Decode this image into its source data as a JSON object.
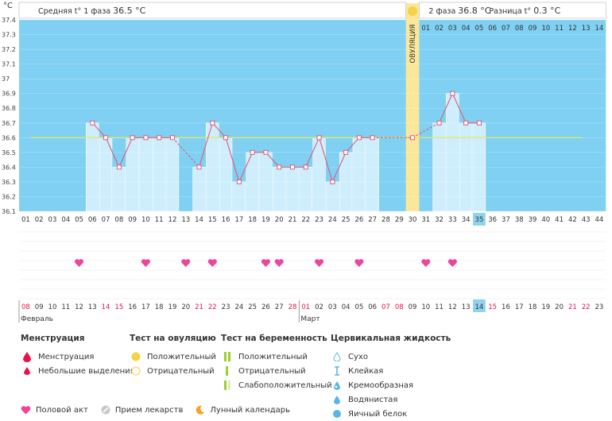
{
  "header": {
    "unit": "°C",
    "phase1_label": "Средняя t° 1 фаза",
    "phase1_value": "36.5 °C",
    "phase2_label": "2 фаза",
    "phase2_value": "36.8 °C",
    "diff_label": "Разница t°",
    "diff_value": "0.3 °C"
  },
  "ovulation_label": "ОВУЛЯЦИЯ",
  "top_axis": [
    "01",
    "02",
    "03",
    "04",
    "05",
    "06",
    "07",
    "08",
    "09",
    "10",
    "11",
    "12",
    "13",
    "14"
  ],
  "cycle_days": [
    "01",
    "02",
    "03",
    "04",
    "05",
    "06",
    "07",
    "08",
    "09",
    "10",
    "11",
    "12",
    "13",
    "14",
    "15",
    "16",
    "17",
    "18",
    "19",
    "20",
    "21",
    "22",
    "23",
    "24",
    "25",
    "26",
    "27",
    "28",
    "29",
    "30",
    "31",
    "32",
    "33",
    "34",
    "35",
    "36",
    "37",
    "38",
    "39",
    "40",
    "41",
    "42",
    "43",
    "44"
  ],
  "current_day": "35",
  "dates": [
    {
      "d": "08",
      "red": true
    },
    {
      "d": "09",
      "red": false
    },
    {
      "d": "10",
      "red": false
    },
    {
      "d": "11",
      "red": false
    },
    {
      "d": "12",
      "red": false
    },
    {
      "d": "13",
      "red": false
    },
    {
      "d": "14",
      "red": true
    },
    {
      "d": "15",
      "red": true
    },
    {
      "d": "16",
      "red": false
    },
    {
      "d": "17",
      "red": false
    },
    {
      "d": "18",
      "red": false
    },
    {
      "d": "19",
      "red": false
    },
    {
      "d": "20",
      "red": false
    },
    {
      "d": "21",
      "red": true
    },
    {
      "d": "22",
      "red": true
    },
    {
      "d": "23",
      "red": false
    },
    {
      "d": "24",
      "red": false
    },
    {
      "d": "25",
      "red": false
    },
    {
      "d": "26",
      "red": false
    },
    {
      "d": "27",
      "red": false
    },
    {
      "d": "28",
      "red": true
    },
    {
      "d": "01",
      "red": true
    },
    {
      "d": "02",
      "red": false
    },
    {
      "d": "03",
      "red": false
    },
    {
      "d": "04",
      "red": false
    },
    {
      "d": "05",
      "red": false
    },
    {
      "d": "06",
      "red": false
    },
    {
      "d": "07",
      "red": true
    },
    {
      "d": "08",
      "red": true
    },
    {
      "d": "09",
      "red": false
    },
    {
      "d": "10",
      "red": false
    },
    {
      "d": "11",
      "red": false
    },
    {
      "d": "12",
      "red": false
    },
    {
      "d": "13",
      "red": false
    },
    {
      "d": "14",
      "red": false
    },
    {
      "d": "15",
      "red": true
    },
    {
      "d": "16",
      "red": false
    },
    {
      "d": "17",
      "red": false
    },
    {
      "d": "18",
      "red": false
    },
    {
      "d": "19",
      "red": false
    },
    {
      "d": "20",
      "red": false
    },
    {
      "d": "21",
      "red": true
    },
    {
      "d": "22",
      "red": true
    },
    {
      "d": "23",
      "red": false
    }
  ],
  "months": [
    {
      "name": "Февраль",
      "day": 1
    },
    {
      "name": "Март",
      "day": 22
    }
  ],
  "chart_data": {
    "type": "bar",
    "categories": [
      "01",
      "02",
      "03",
      "04",
      "05",
      "06",
      "07",
      "08",
      "09",
      "10",
      "11",
      "12",
      "13",
      "14",
      "15",
      "16",
      "17",
      "18",
      "19",
      "20",
      "21",
      "22",
      "23",
      "24",
      "25",
      "26",
      "27",
      "28",
      "29",
      "30",
      "31",
      "32",
      "33",
      "34",
      "35",
      "36",
      "37",
      "38",
      "39",
      "40",
      "41",
      "42",
      "43",
      "44"
    ],
    "ylim": [
      36.1,
      37.4
    ],
    "yticks": [
      "36.1",
      "36.2",
      "36.3",
      "36.4",
      "36.5",
      "36.6",
      "36.7",
      "36.8",
      "36.9",
      "37",
      "37.1",
      "37.2",
      "37.3",
      "37.4"
    ],
    "ylabel": "°C",
    "coverline": 36.6,
    "ovulation_day": 30,
    "series": [
      {
        "values": [
          null,
          null,
          null,
          null,
          null,
          36.7,
          36.6,
          36.4,
          36.6,
          36.6,
          36.6,
          36.6,
          null,
          36.4,
          36.7,
          36.6,
          36.3,
          36.5,
          36.5,
          36.4,
          36.4,
          36.4,
          36.6,
          36.3,
          36.5,
          36.6,
          36.6,
          null,
          null,
          36.6,
          null,
          36.7,
          36.9,
          36.7,
          36.7,
          null,
          null,
          null,
          null,
          null,
          null,
          null,
          null,
          null
        ]
      }
    ],
    "intercourse_days": [
      5,
      10,
      13,
      15,
      19,
      20,
      23,
      26,
      31,
      33
    ]
  },
  "legend": {
    "menstruation_title": "Менструация",
    "menstruation_items": [
      "Менструация",
      "Небольшие выделения"
    ],
    "ovulation_test_title": "Тест на овуляцию",
    "ovulation_test_items": [
      "Положительный",
      "Отрицательный"
    ],
    "pregnancy_test_title": "Тест на беременность",
    "pregnancy_test_items": [
      "Положительный",
      "Отрицательный",
      "Слабоположительный"
    ],
    "cervical_title": "Цервикальная жидкость",
    "cervical_items": [
      "Сухо",
      "Клейкая",
      "Кремообразная",
      "Водянистая",
      "Яичный белок"
    ],
    "bottom_items": [
      "Половой акт",
      "Прием лекарств",
      "Лунный календарь"
    ]
  },
  "colors": {
    "bar": "#cfeefd",
    "plot_bg": "#7fd0f2",
    "line": "#e05a7a",
    "heart": "#f0449a",
    "ovulation": "#fbe79a",
    "red": "#e8124a"
  }
}
